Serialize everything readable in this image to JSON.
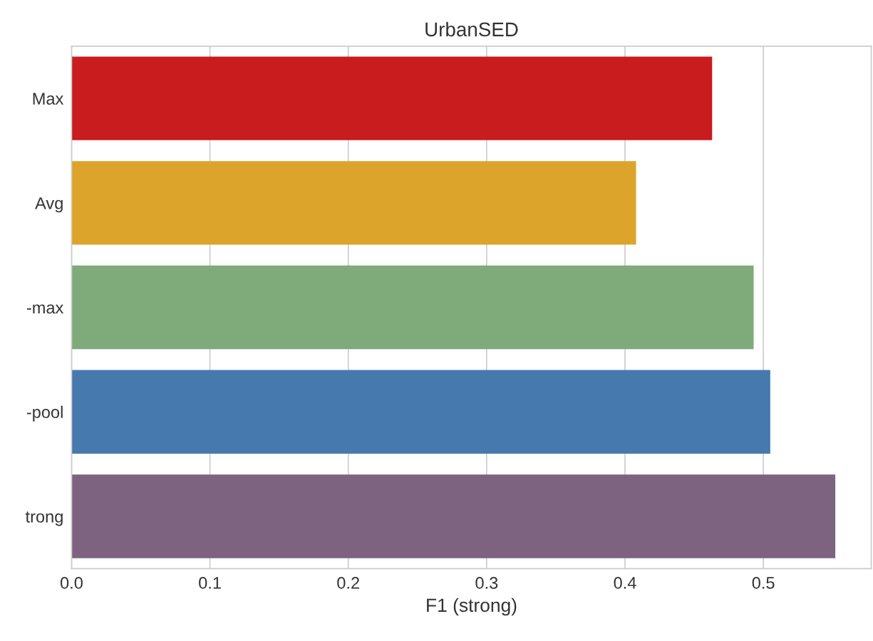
{
  "chart_data": {
    "type": "bar",
    "orientation": "horizontal",
    "title": "UrbanSED",
    "xlabel": "F1 (strong)",
    "categories": [
      "Max",
      "Avg",
      "-max",
      "-pool",
      "trong"
    ],
    "values": [
      0.463,
      0.408,
      0.493,
      0.505,
      0.552
    ],
    "colors": [
      "#c81c1e",
      "#dca42a",
      "#7faa7a",
      "#4679ae",
      "#7e6380"
    ],
    "xlim": [
      0,
      0.578
    ],
    "xticks": [
      {
        "value": 0,
        "label": "0.0"
      },
      0.1,
      0.2,
      0.3,
      0.4,
      0.5
    ],
    "grid": "x"
  }
}
